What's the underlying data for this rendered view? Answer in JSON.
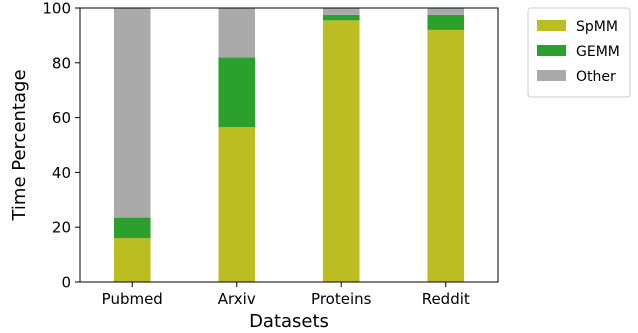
{
  "chart_data": {
    "type": "bar",
    "stacked": true,
    "xlabel": "Datasets",
    "ylabel": "Time Percentage",
    "ylim": [
      0,
      100
    ],
    "yticks": [
      0,
      20,
      40,
      60,
      80,
      100
    ],
    "grid": false,
    "legend_placement": "outside-top-right",
    "categories": [
      "Pubmed",
      "Arxiv",
      "Proteins",
      "Reddit"
    ],
    "series": [
      {
        "name": "SpMM",
        "color": "#bcbd22",
        "values": [
          16,
          56.5,
          95.5,
          92
        ]
      },
      {
        "name": "GEMM",
        "color": "#2ca02c",
        "values": [
          7.5,
          25.5,
          2,
          5.5
        ]
      },
      {
        "name": "Other",
        "color": "#aaaaaa",
        "values": [
          76.5,
          18,
          2.5,
          2.5
        ]
      }
    ]
  }
}
